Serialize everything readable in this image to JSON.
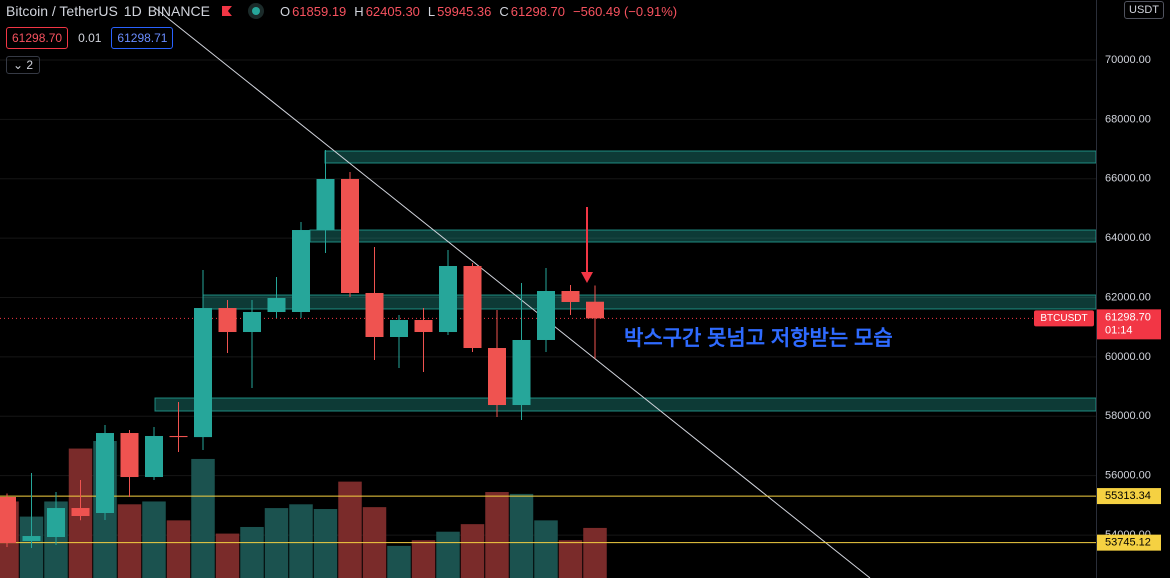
{
  "header": {
    "symbol": "Bitcoin / TetherUS",
    "interval": "1D",
    "exchange": "BINANCE",
    "o_key": "O",
    "o": "61859.19",
    "h_key": "H",
    "h": "62405.30",
    "l_key": "L",
    "l": "59945.36",
    "c_key": "C",
    "c": "61298.70",
    "change": "−560.49 (−0.91%)",
    "sell": "61298.70",
    "spread": "0.01",
    "buy": "61298.71",
    "lots": "2",
    "currency": "USDT"
  },
  "chart_data": {
    "type": "candlestick",
    "categories": [
      null,
      null,
      null,
      null,
      null,
      null,
      null,
      null,
      null,
      null,
      null,
      null,
      null,
      null,
      null,
      null,
      null,
      null,
      null,
      null,
      null,
      null,
      null,
      null,
      null
    ],
    "open": [
      55282,
      53800,
      53934,
      54911,
      54743,
      57437,
      55955,
      57337,
      57300,
      61647,
      60839,
      61513,
      61513,
      64274,
      65992,
      62153,
      60671,
      61243,
      60839,
      63062,
      60300,
      58380,
      60570,
      62220,
      61859.19
    ],
    "high": [
      55400,
      56090,
      55450,
      55854,
      57707,
      57538,
      57640,
      58482,
      62927,
      61917,
      61917,
      62691,
      64544,
      66969,
      66228,
      63702,
      61412,
      61647,
      63601,
      63163,
      61580,
      62489,
      62995,
      62422,
      62405.3
    ],
    "low": [
      53600,
      53565,
      53665,
      54500,
      54507,
      55282,
      55854,
      56797,
      56865,
      60132,
      58953,
      61311,
      61311,
      63500,
      62018,
      59896,
      59627,
      59492,
      60738,
      60166,
      57976,
      57875,
      60166,
      61412,
      59945.36
    ],
    "close": [
      53733,
      53968,
      54911,
      54642,
      57437,
      55955,
      57337,
      57300,
      61647,
      60839,
      61513,
      61984,
      64274,
      65992,
      62153,
      60671,
      61243,
      60839,
      63062,
      60300,
      58380,
      60570,
      62220,
      61850,
      61298.7
    ],
    "volume": [
      81,
      65,
      81,
      137,
      145,
      78,
      81,
      61,
      126,
      47,
      54,
      74,
      78,
      73,
      102,
      75,
      34,
      40,
      49,
      57,
      91,
      89,
      61,
      40,
      53
    ],
    "up_color": "#26a69a",
    "down_color": "#ef5350",
    "up_volume_color": "#1b524f",
    "down_volume_color": "#7a2b2a",
    "ylim": [
      52554,
      72021
    ],
    "yticks": [
      {
        "value": 54000,
        "label": "54000.00"
      },
      {
        "value": 56000,
        "label": "56000.00"
      },
      {
        "value": 58000,
        "label": "58000.00"
      },
      {
        "value": 60000,
        "label": "60000.00"
      },
      {
        "value": 62000,
        "label": "62000.00"
      },
      {
        "value": 64000,
        "label": "64000.00"
      },
      {
        "value": 66000,
        "label": "66000.00"
      },
      {
        "value": 68000,
        "label": "68000.00"
      },
      {
        "value": 70000,
        "label": "70000.00"
      }
    ],
    "grid": true,
    "zones": [
      {
        "low": 66531,
        "high": 66935
      },
      {
        "low": 63870,
        "high": 64274
      },
      {
        "low": 61614,
        "high": 62085
      },
      {
        "low": 58178,
        "high": 58616
      }
    ],
    "zone_color": "#26a69a",
    "levels": [
      55313.34,
      53745.12
    ],
    "level_color": "#f5d142",
    "price_line": {
      "value": 61298.7,
      "label": "61298.70",
      "symbol": "BTCUSDT",
      "countdown": "01:14",
      "color": "#f23645"
    },
    "annotation": "박스구간 못넘고 저항받는 모습"
  }
}
